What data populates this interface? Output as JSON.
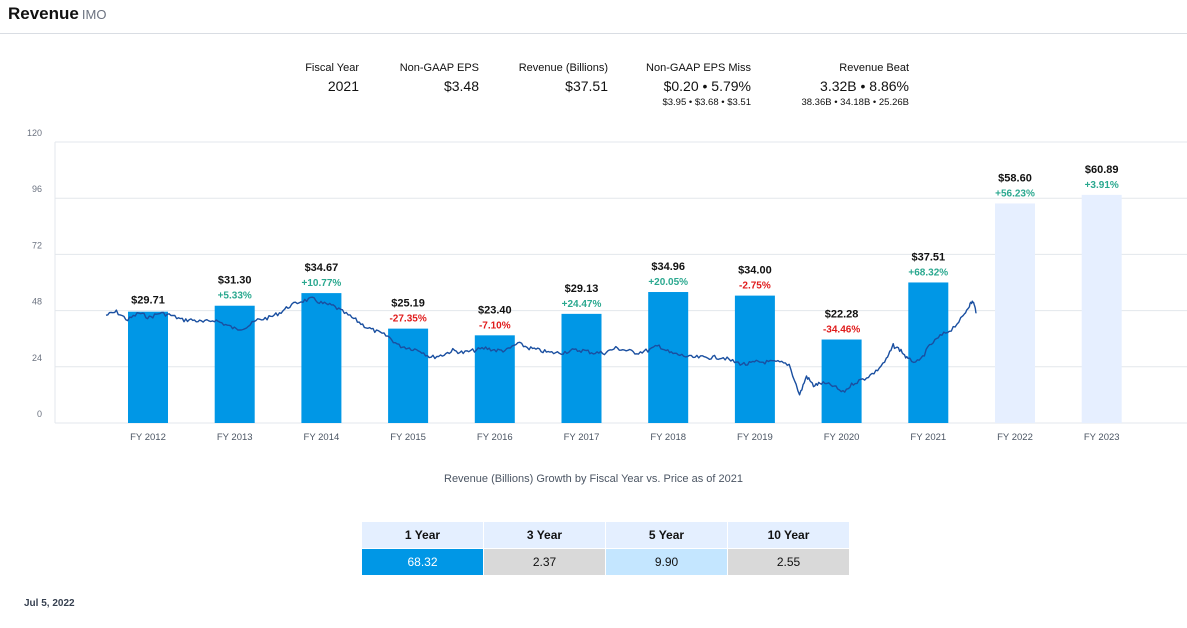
{
  "header": {
    "title": "Revenue",
    "ticker": "IMO"
  },
  "stats": [
    {
      "label": "Fiscal Year",
      "value": "2021",
      "sub": ""
    },
    {
      "label": "Non-GAAP EPS",
      "value": "$3.48",
      "sub": ""
    },
    {
      "label": "Revenue (Billions)",
      "value": "$37.51",
      "sub": ""
    },
    {
      "label": "Non-GAAP EPS Miss",
      "value": "$0.20 • 5.79%",
      "sub": "$3.95 • $3.68 • $3.51"
    },
    {
      "label": "Revenue Beat",
      "value": "3.32B • 8.86%",
      "sub": "38.36B • 34.18B • 25.26B"
    }
  ],
  "colors": {
    "bar": "#0097e6",
    "bar_estimate": "#e6efff",
    "price_line": "#1a4fa0",
    "negative": "#e01b1b",
    "positive": "#2aa88f",
    "grid": "#e3e7ec"
  },
  "chart_data": {
    "type": "bar",
    "categories": [
      "FY 2012",
      "FY 2013",
      "FY 2014",
      "FY 2015",
      "FY 2016",
      "FY 2017",
      "FY 2018",
      "FY 2019",
      "FY 2020",
      "FY 2021",
      "FY 2022",
      "FY 2023"
    ],
    "values": [
      29.71,
      31.3,
      34.67,
      25.19,
      23.4,
      29.13,
      34.96,
      34.0,
      22.28,
      37.51,
      58.6,
      60.89
    ],
    "value_labels": [
      "$29.71",
      "$31.30",
      "$34.67",
      "$25.19",
      "$23.40",
      "$29.13",
      "$34.96",
      "$34.00",
      "$22.28",
      "$37.51",
      "$58.60",
      "$60.89"
    ],
    "growth_labels": [
      "",
      "+5.33%",
      "+10.77%",
      "-27.35%",
      "-7.10%",
      "+24.47%",
      "+20.05%",
      "-2.75%",
      "-34.46%",
      "+68.32%",
      "+56.23%",
      "+3.91%"
    ],
    "estimated": [
      false,
      false,
      false,
      false,
      false,
      false,
      false,
      false,
      false,
      false,
      true,
      true
    ],
    "bar_ylim": [
      0,
      75
    ],
    "y_ticks": [
      0,
      24,
      48,
      72,
      96,
      120
    ],
    "ylim": [
      0,
      120
    ],
    "price_series": {
      "type": "line",
      "points": [
        [
          0.0,
          46
        ],
        [
          0.12,
          47.5
        ],
        [
          0.25,
          44
        ],
        [
          0.38,
          47
        ],
        [
          0.5,
          45
        ],
        [
          0.62,
          47
        ],
        [
          0.75,
          46
        ],
        [
          0.88,
          44
        ],
        [
          1.0,
          44
        ],
        [
          1.12,
          43
        ],
        [
          1.25,
          44
        ],
        [
          1.38,
          42
        ],
        [
          1.5,
          40
        ],
        [
          1.62,
          41
        ],
        [
          1.75,
          44
        ],
        [
          1.88,
          45
        ],
        [
          2.0,
          47
        ],
        [
          2.12,
          50
        ],
        [
          2.25,
          52
        ],
        [
          2.38,
          53
        ],
        [
          2.5,
          51
        ],
        [
          2.62,
          50
        ],
        [
          2.75,
          47
        ],
        [
          2.88,
          44
        ],
        [
          3.0,
          41
        ],
        [
          3.12,
          39
        ],
        [
          3.25,
          37
        ],
        [
          3.38,
          33
        ],
        [
          3.5,
          32
        ],
        [
          3.62,
          31
        ],
        [
          3.75,
          28
        ],
        [
          3.88,
          29
        ],
        [
          4.0,
          31
        ],
        [
          4.12,
          30
        ],
        [
          4.25,
          31
        ],
        [
          4.38,
          32
        ],
        [
          4.5,
          31
        ],
        [
          4.62,
          31
        ],
        [
          4.75,
          34
        ],
        [
          4.88,
          32
        ],
        [
          5.0,
          31
        ],
        [
          5.12,
          30
        ],
        [
          5.25,
          30
        ],
        [
          5.38,
          31
        ],
        [
          5.5,
          31
        ],
        [
          5.62,
          30
        ],
        [
          5.75,
          30
        ],
        [
          5.88,
          32
        ],
        [
          6.0,
          31
        ],
        [
          6.12,
          30
        ],
        [
          6.25,
          31
        ],
        [
          6.38,
          33
        ],
        [
          6.5,
          30
        ],
        [
          6.62,
          29
        ],
        [
          6.75,
          28
        ],
        [
          6.88,
          28
        ],
        [
          7.0,
          28
        ],
        [
          7.12,
          28
        ],
        [
          7.25,
          26
        ],
        [
          7.38,
          25
        ],
        [
          7.5,
          26
        ],
        [
          7.62,
          26
        ],
        [
          7.75,
          26
        ],
        [
          7.88,
          25
        ],
        [
          8.0,
          12
        ],
        [
          8.08,
          20
        ],
        [
          8.16,
          16
        ],
        [
          8.25,
          17
        ],
        [
          8.38,
          16
        ],
        [
          8.5,
          13
        ],
        [
          8.62,
          17
        ],
        [
          8.75,
          19
        ],
        [
          8.88,
          22
        ],
        [
          9.0,
          27
        ],
        [
          9.08,
          33
        ],
        [
          9.17,
          31
        ],
        [
          9.25,
          27
        ],
        [
          9.38,
          26
        ],
        [
          9.5,
          33
        ],
        [
          9.62,
          37
        ],
        [
          9.75,
          40
        ],
        [
          9.88,
          45
        ],
        [
          9.95,
          50
        ],
        [
          10.0,
          52
        ],
        [
          10.04,
          47
        ]
      ]
    }
  },
  "caption": "Revenue (Billions) Growth by Fiscal Year vs. Price as of 2021",
  "growth_table": {
    "headers": [
      "1 Year",
      "3 Year",
      "5 Year",
      "10 Year"
    ],
    "values": [
      "68.32",
      "2.37",
      "9.90",
      "2.55"
    ]
  },
  "date": "Jul 5, 2022"
}
